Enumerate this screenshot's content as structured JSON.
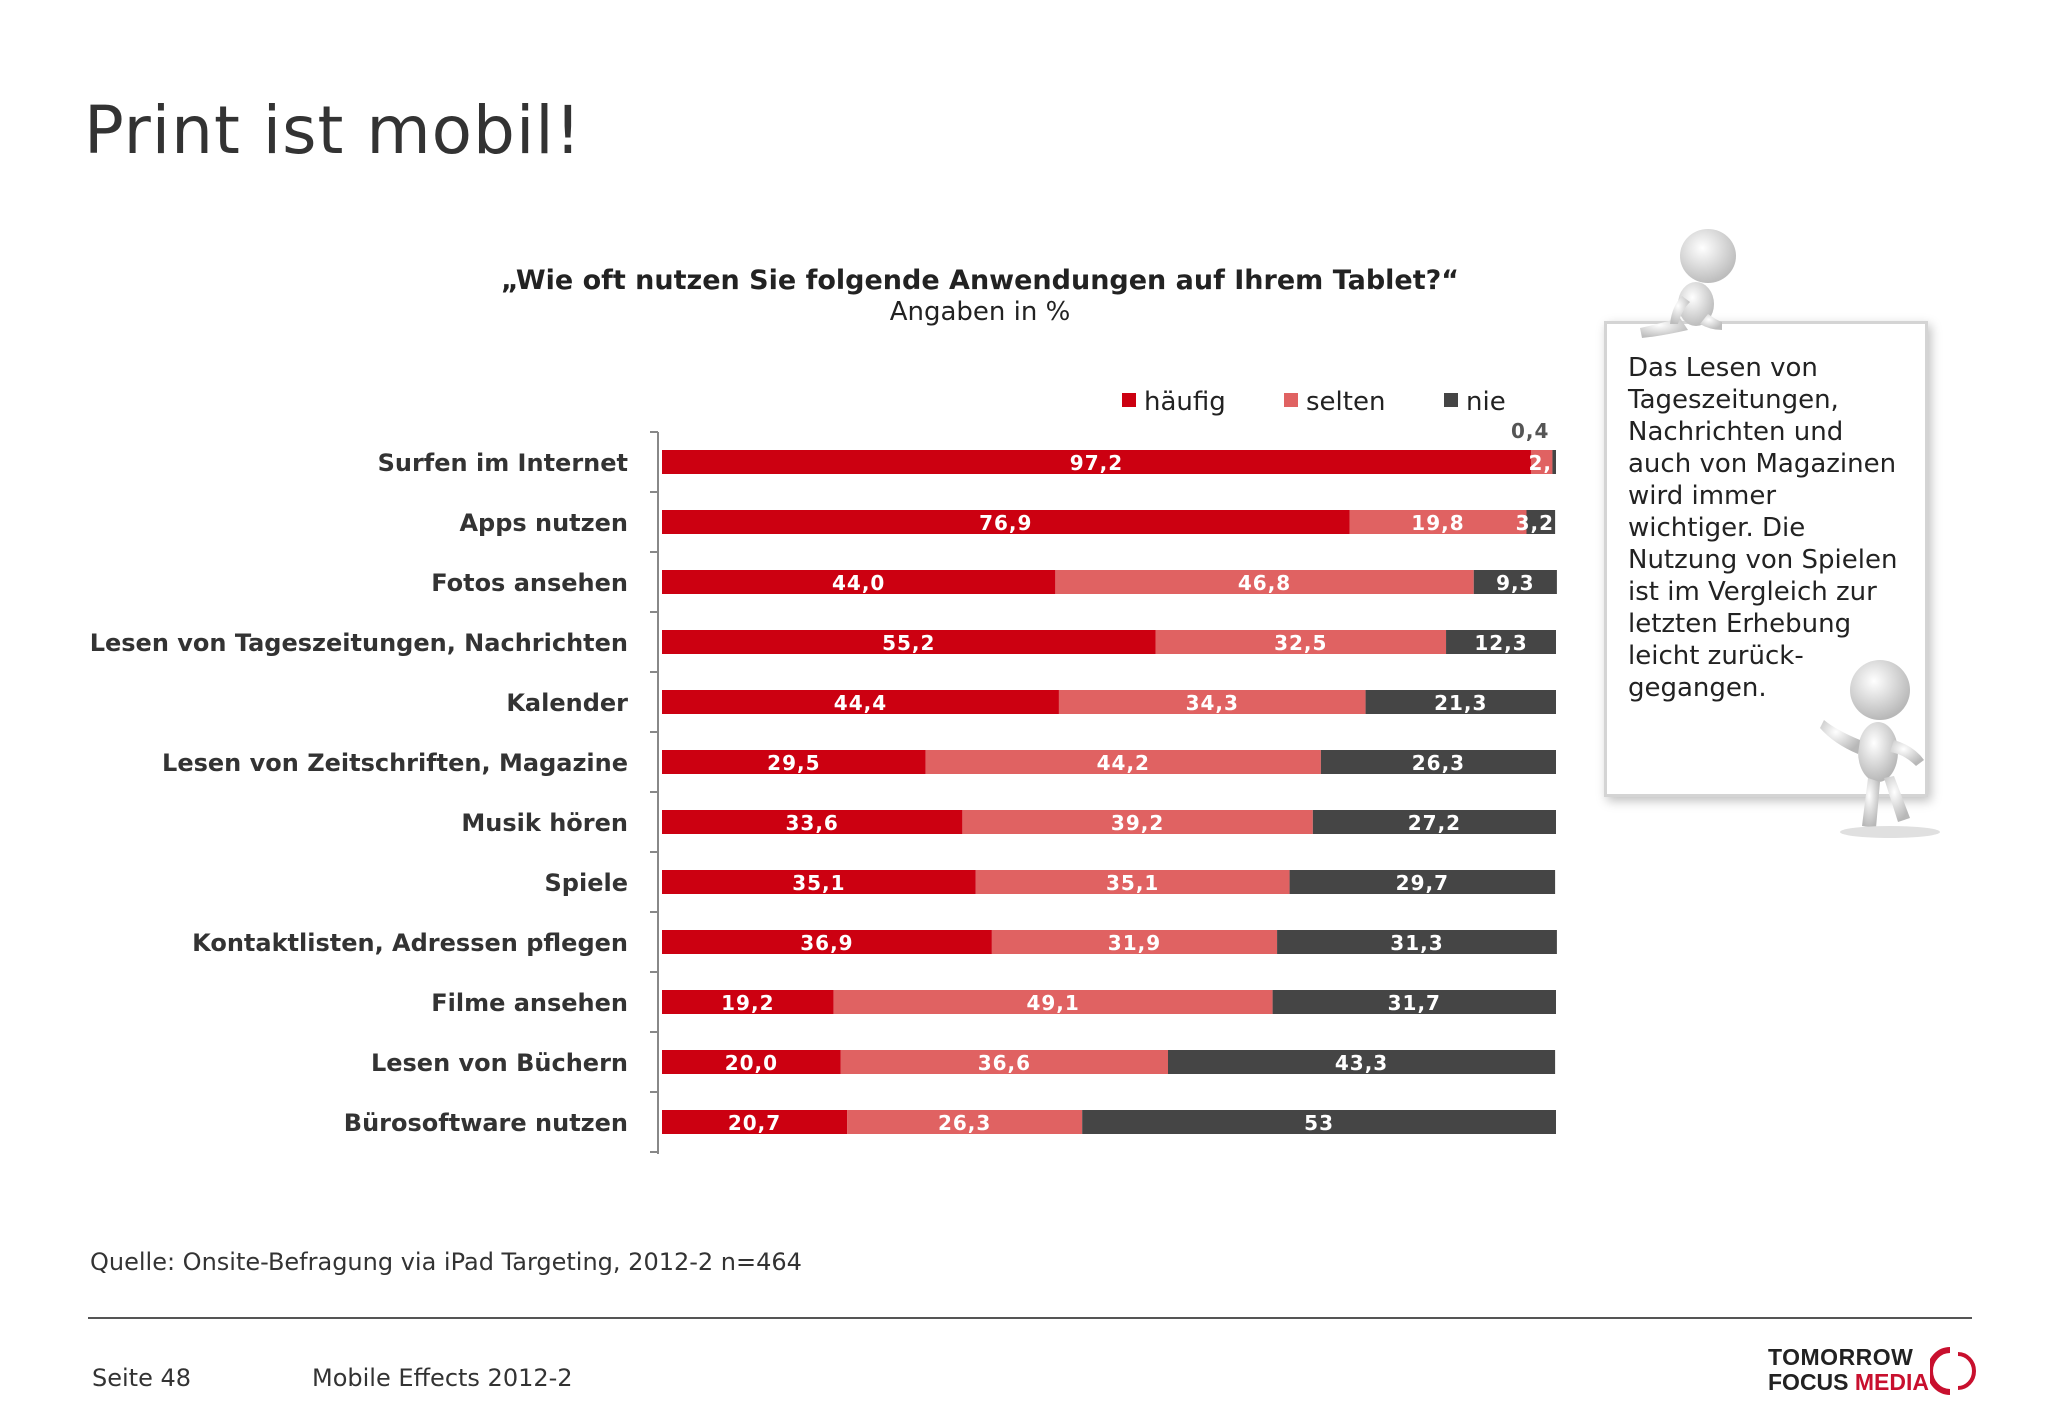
{
  "page": {
    "title": "Print ist mobil!",
    "source": "Quelle: Onsite-Befragung via iPad Targeting, 2012-2 n=464",
    "page_number": "Seite 48",
    "report_name": "Mobile Effects 2012-2"
  },
  "callout": {
    "text": "Das Lesen von Tageszeitungen, Nachrichten und auch von Magazinen wird immer wichtiger. Die Nutzung von Spielen ist im Vergleich zur letzten Erhebung leicht zurück-gegangen."
  },
  "logo": {
    "line1": "TOMORROW",
    "line2_a": "FOCUS",
    "line2_b": "MEDIA"
  },
  "colors": {
    "haeufig": "#cc0011",
    "selten": "#e06262",
    "nie": "#454545",
    "brand": "#c8102e"
  },
  "chart_data": {
    "type": "bar",
    "orientation": "horizontal",
    "stacked": true,
    "title": "„Wie oft nutzen Sie folgende Anwendungen auf Ihrem Tablet?“",
    "subtitle": "Angaben in %",
    "legend_position": "top-right",
    "xlim": [
      0,
      100
    ],
    "grid": false,
    "categories": [
      "Surfen im Internet",
      "Apps nutzen",
      "Fotos ansehen",
      "Lesen von Tageszeitungen, Nachrichten",
      "Kalender",
      "Lesen von Zeitschriften, Magazine",
      "Musik hören",
      "Spiele",
      "Kontaktlisten, Adressen pflegen",
      "Filme ansehen",
      "Lesen von Büchern",
      "Bürosoftware nutzen"
    ],
    "series": [
      {
        "name": "häufig",
        "values": [
          97.2,
          76.9,
          44.0,
          55.2,
          44.4,
          29.5,
          33.6,
          35.1,
          36.9,
          19.2,
          20.0,
          20.7
        ],
        "labels": [
          "97,2",
          "76,9",
          "44,0",
          "55,2",
          "44,4",
          "29,5",
          "33,6",
          "35,1",
          "36,9",
          "19,2",
          "20,0",
          "20,7"
        ]
      },
      {
        "name": "selten",
        "values": [
          2.4,
          19.8,
          46.8,
          32.5,
          34.3,
          44.2,
          39.2,
          35.1,
          31.9,
          49.1,
          36.6,
          26.3
        ],
        "labels": [
          "2,4",
          "19,8",
          "46,8",
          "32,5",
          "34,3",
          "44,2",
          "39,2",
          "35,1",
          "31,9",
          "49,1",
          "36,6",
          "26,3"
        ]
      },
      {
        "name": "nie",
        "values": [
          0.4,
          3.2,
          9.3,
          12.3,
          21.3,
          26.3,
          27.2,
          29.7,
          31.3,
          31.7,
          43.3,
          53
        ],
        "labels": [
          "0,4",
          "3,2",
          "9,3",
          "12,3",
          "21,3",
          "26,3",
          "27,2",
          "29,7",
          "31,3",
          "31,7",
          "43,3",
          "53"
        ]
      }
    ]
  }
}
